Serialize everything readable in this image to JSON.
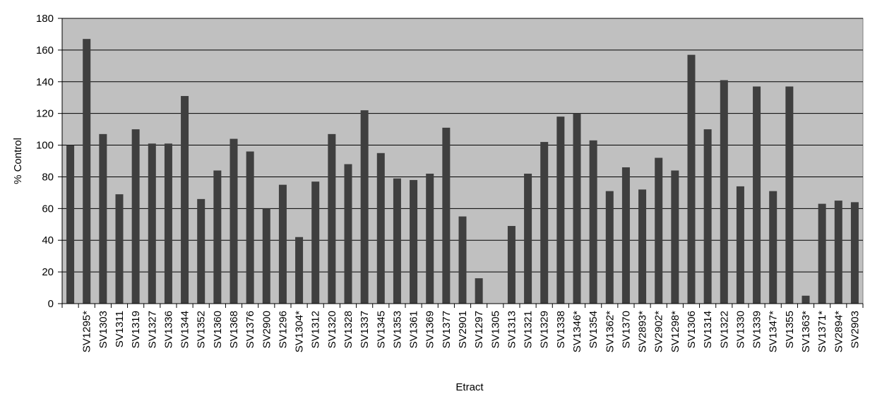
{
  "chart_data": {
    "type": "bar",
    "xlabel": "Etract",
    "ylabel": "% Control",
    "ylim": [
      0,
      180
    ],
    "yticks": [
      0,
      20,
      40,
      60,
      80,
      100,
      120,
      140,
      160,
      180
    ],
    "grid": true,
    "legend": "none",
    "categories": [
      "",
      "SV1295*",
      "SV1303",
      "SV1311",
      "SV1319",
      "SV1327",
      "SV1336",
      "SV1344",
      "SV1352",
      "SV1360",
      "SV1368",
      "SV1376",
      "SV2900",
      "SV1296",
      "SV1304*",
      "SV1312",
      "SV1320",
      "SV1328",
      "SV1337",
      "SV1345",
      "SV1353",
      "SV1361",
      "SV1369",
      "SV1377",
      "SV2901",
      "SV1297",
      "SV1305",
      "SV1313",
      "SV1321",
      "SV1329",
      "SV1338",
      "SV1346*",
      "SV1354",
      "SV1362*",
      "SV1370",
      "SV2893*",
      "SV2902*",
      "SV1298*",
      "SV1306",
      "SV1314",
      "SV1322",
      "SV1330",
      "SV1339",
      "SV1347*",
      "SV1355",
      "SV1363*",
      "SV1371*",
      "SV2894*",
      "SV2903"
    ],
    "values": [
      100,
      167,
      107,
      69,
      110,
      101,
      101,
      131,
      66,
      84,
      104,
      96,
      60,
      75,
      42,
      77,
      107,
      88,
      122,
      95,
      79,
      78,
      82,
      111,
      55,
      16,
      0,
      49,
      82,
      102,
      118,
      120,
      103,
      71,
      86,
      72,
      92,
      84,
      157,
      110,
      141,
      74,
      137,
      71,
      137,
      5,
      63,
      65,
      64
    ]
  },
  "colors": {
    "plot_background": "#c0c0c0",
    "bar_fill": "#3f3f3f",
    "gridline": "#000000"
  }
}
